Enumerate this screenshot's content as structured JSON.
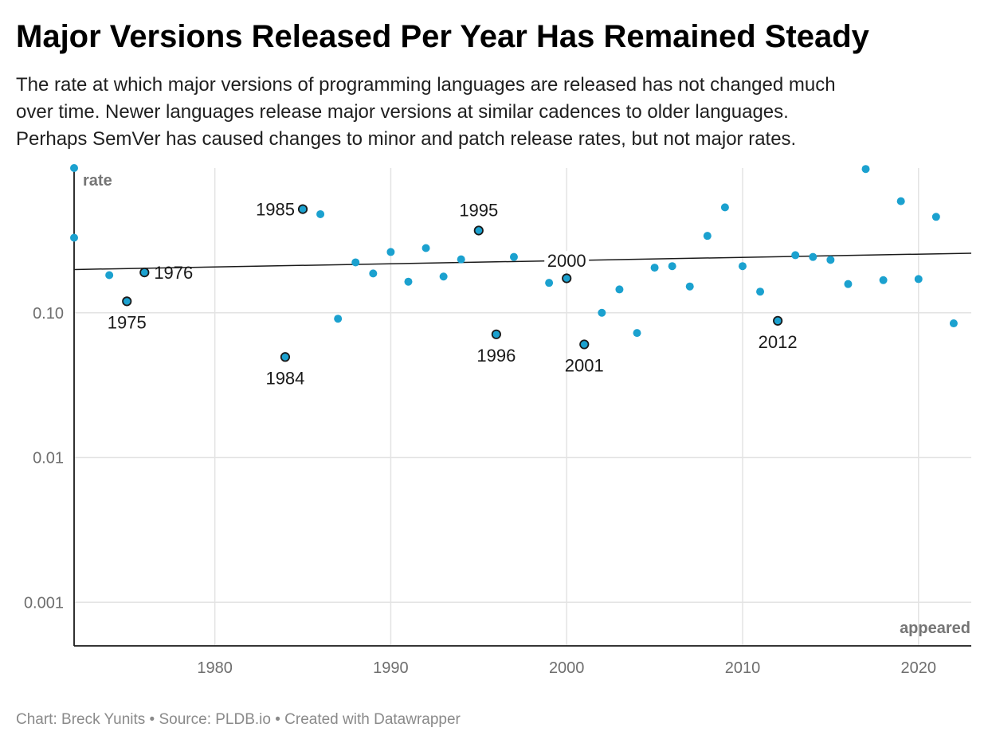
{
  "title": "Major Versions Released Per Year Has Remained Steady",
  "subtitle_lines": [
    "The rate at which major versions of programming languages are released has not changed much",
    "over time. Newer languages release major versions at similar cadences to older languages.",
    "Perhaps SemVer has caused changes to minor and patch release rates, but not major rates."
  ],
  "footer": "Chart: Breck Yunits • Source: PLDB.io • Created with Datawrapper",
  "chart_data": {
    "type": "scatter",
    "xlabel": "appeared",
    "ylabel": "rate",
    "x_scale": "linear",
    "y_scale": "log",
    "xlim": [
      1972,
      2023
    ],
    "ylim": [
      0.0005,
      1.0
    ],
    "x_ticks": [
      1980,
      1990,
      2000,
      2010,
      2020
    ],
    "x_tick_labels": [
      "1980",
      "1990",
      "2000",
      "2010",
      "2020"
    ],
    "y_ticks": [
      0.001,
      0.01,
      0.1
    ],
    "y_tick_labels": [
      "0.001",
      "0.01",
      "0.10"
    ],
    "grid": true,
    "colors": {
      "point": "#1ba1cf",
      "highlight_stroke": "#1a1a1a",
      "trendline": "#1a1a1a",
      "grid": "#e3e3e3"
    },
    "points": [
      {
        "x": 1972,
        "y": 1.0
      },
      {
        "x": 1972,
        "y": 0.33
      },
      {
        "x": 1974,
        "y": 0.182
      },
      {
        "x": 1975,
        "y": 0.12,
        "label": "1975",
        "label_pos": "below",
        "highlight": true
      },
      {
        "x": 1976,
        "y": 0.19,
        "label": "1976",
        "label_pos": "right",
        "highlight": true
      },
      {
        "x": 1984,
        "y": 0.0495,
        "label": "1984",
        "label_pos": "below",
        "highlight": true
      },
      {
        "x": 1985,
        "y": 0.52,
        "label": "1985",
        "label_pos": "left",
        "highlight": true
      },
      {
        "x": 1986,
        "y": 0.48
      },
      {
        "x": 1987,
        "y": 0.091
      },
      {
        "x": 1988,
        "y": 0.223
      },
      {
        "x": 1989,
        "y": 0.187
      },
      {
        "x": 1990,
        "y": 0.263
      },
      {
        "x": 1991,
        "y": 0.164
      },
      {
        "x": 1992,
        "y": 0.28
      },
      {
        "x": 1993,
        "y": 0.178
      },
      {
        "x": 1994,
        "y": 0.234
      },
      {
        "x": 1995,
        "y": 0.37,
        "label": "1995",
        "label_pos": "above",
        "highlight": true
      },
      {
        "x": 1996,
        "y": 0.071,
        "label": "1996",
        "label_pos": "below",
        "highlight": true
      },
      {
        "x": 1997,
        "y": 0.243
      },
      {
        "x": 1999,
        "y": 0.161
      },
      {
        "x": 2000,
        "y": 0.173,
        "label": "2000",
        "label_pos": "trend",
        "highlight": true
      },
      {
        "x": 2001,
        "y": 0.0605,
        "label": "2001",
        "label_pos": "below",
        "highlight": true
      },
      {
        "x": 2002,
        "y": 0.1
      },
      {
        "x": 2003,
        "y": 0.145
      },
      {
        "x": 2004,
        "y": 0.0725
      },
      {
        "x": 2005,
        "y": 0.205
      },
      {
        "x": 2006,
        "y": 0.21
      },
      {
        "x": 2007,
        "y": 0.152
      },
      {
        "x": 2008,
        "y": 0.34
      },
      {
        "x": 2009,
        "y": 0.535
      },
      {
        "x": 2010,
        "y": 0.21
      },
      {
        "x": 2011,
        "y": 0.14
      },
      {
        "x": 2012,
        "y": 0.088,
        "label": "2012",
        "label_pos": "below",
        "highlight": true
      },
      {
        "x": 2013,
        "y": 0.25
      },
      {
        "x": 2014,
        "y": 0.243
      },
      {
        "x": 2015,
        "y": 0.232
      },
      {
        "x": 2016,
        "y": 0.158
      },
      {
        "x": 2017,
        "y": 0.985
      },
      {
        "x": 2018,
        "y": 0.168
      },
      {
        "x": 2019,
        "y": 0.59
      },
      {
        "x": 2020,
        "y": 0.171
      },
      {
        "x": 2021,
        "y": 0.46
      },
      {
        "x": 2022,
        "y": 0.0845
      }
    ],
    "trendline": {
      "x": [
        1972,
        2023
      ],
      "y": [
        0.199,
        0.258
      ]
    }
  }
}
